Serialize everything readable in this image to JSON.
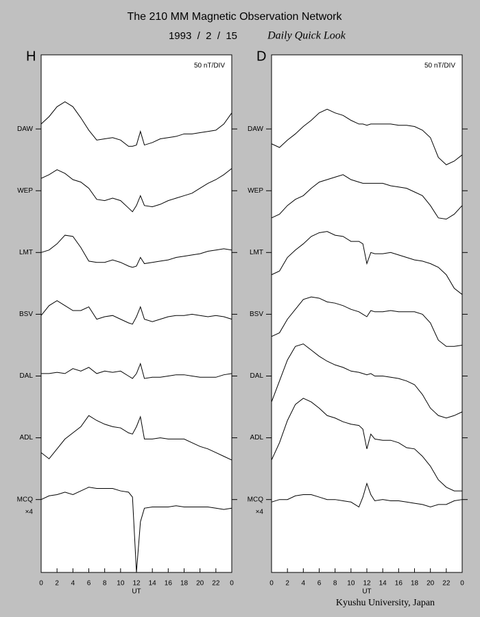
{
  "header": {
    "title": "The 210 MM Magnetic Observation Network",
    "date": "1993  /  2  /  15",
    "subtitle": "Daily Quick Look"
  },
  "footer": "Kyushu University, Japan",
  "chart_data": [
    {
      "type": "line",
      "panel_label": "H",
      "annotation": "50 nT/DIV",
      "xlabel": "UT",
      "scale_note": "×4",
      "x": [
        0,
        1,
        2,
        3,
        4,
        5,
        6,
        7,
        8,
        9,
        10,
        11,
        11.5,
        12,
        12.5,
        13,
        14,
        15,
        16,
        17,
        18,
        19,
        20,
        21,
        22,
        23,
        24
      ],
      "xlim": [
        0,
        24
      ],
      "xticks": [
        0,
        2,
        4,
        6,
        8,
        10,
        12,
        14,
        16,
        18,
        20,
        22,
        {
          "value": 24,
          "label": "0"
        }
      ],
      "ylim": [
        -359,
        60
      ],
      "yticks": [
        {
          "value": 0,
          "label": "DAW"
        },
        {
          "value": -50,
          "label": "WEP"
        },
        {
          "value": -100,
          "label": "LMT"
        },
        {
          "value": -150,
          "label": "BSV"
        },
        {
          "value": -200,
          "label": "DAL"
        },
        {
          "value": -250,
          "label": "ADL"
        },
        {
          "value": -300,
          "label": "MCQ"
        }
      ],
      "series": [
        {
          "name": "DAW",
          "color": "#000000",
          "values": [
            4,
            10,
            18,
            22,
            18,
            9,
            -1,
            -9,
            -8,
            -7,
            -9,
            -14,
            -14,
            -13,
            -2,
            -13,
            -11,
            -8,
            -7,
            -6,
            -4,
            -4,
            -3,
            -2,
            -1,
            4,
            13
          ]
        },
        {
          "name": "WEP",
          "color": "#000000",
          "values": [
            -40,
            -37,
            -33,
            -36,
            -41,
            -43,
            -48,
            -57,
            -58,
            -56,
            -58,
            -64,
            -67,
            -62,
            -54,
            -62,
            -63,
            -61,
            -58,
            -56,
            -54,
            -52,
            -48,
            -44,
            -41,
            -37,
            -32
          ]
        },
        {
          "name": "LMT",
          "color": "#000000",
          "values": [
            -100,
            -98,
            -93,
            -86,
            -87,
            -96,
            -107,
            -108,
            -108,
            -106,
            -108,
            -111,
            -112,
            -111,
            -104,
            -109,
            -108,
            -107,
            -106,
            -104,
            -103,
            -102,
            -101,
            -99,
            -98,
            -97,
            -98
          ]
        },
        {
          "name": "BSV",
          "color": "#000000",
          "values": [
            -151,
            -143,
            -139,
            -143,
            -147,
            -147,
            -144,
            -154,
            -152,
            -151,
            -154,
            -157,
            -158,
            -152,
            -144,
            -154,
            -156,
            -154,
            -152,
            -151,
            -151,
            -150,
            -151,
            -152,
            -151,
            -152,
            -154
          ]
        },
        {
          "name": "DAL",
          "color": "#000000",
          "values": [
            -198,
            -198,
            -197,
            -198,
            -194,
            -196,
            -193,
            -198,
            -196,
            -197,
            -196,
            -200,
            -202,
            -198,
            -190,
            -202,
            -201,
            -201,
            -200,
            -199,
            -199,
            -200,
            -201,
            -201,
            -201,
            -199,
            -198
          ]
        },
        {
          "name": "ADL",
          "color": "#000000",
          "values": [
            -262,
            -267,
            -259,
            -251,
            -246,
            -241,
            -232,
            -236,
            -239,
            -241,
            -242,
            -246,
            -247,
            -241,
            -233,
            -251,
            -251,
            -250,
            -251,
            -251,
            -251,
            -254,
            -257,
            -259,
            -262,
            -265,
            -268
          ]
        },
        {
          "name": "MCQ",
          "color": "#000000",
          "values": [
            -300,
            -297,
            -296,
            -294,
            -296,
            -293,
            -290,
            -291,
            -291,
            -291,
            -293,
            -294,
            -298,
            -359,
            -318,
            -307,
            -306,
            -306,
            -306,
            -305,
            -306,
            -306,
            -306,
            -306,
            -307,
            -308,
            -307
          ]
        }
      ]
    },
    {
      "type": "line",
      "panel_label": "D",
      "annotation": "50 nT/DIV",
      "xlabel": "UT",
      "scale_note": "×4",
      "x": [
        0,
        1,
        2,
        3,
        4,
        5,
        6,
        7,
        8,
        9,
        10,
        11,
        11.5,
        12,
        12.5,
        13,
        14,
        15,
        16,
        17,
        18,
        19,
        20,
        21,
        22,
        23,
        24
      ],
      "xlim": [
        0,
        24
      ],
      "xticks": [
        0,
        2,
        4,
        6,
        8,
        10,
        12,
        14,
        16,
        18,
        20,
        22,
        {
          "value": 24,
          "label": "0"
        }
      ],
      "ylim": [
        -359,
        60
      ],
      "yticks": [
        {
          "value": 0,
          "label": "DAW"
        },
        {
          "value": -50,
          "label": "WEP"
        },
        {
          "value": -100,
          "label": "LMT"
        },
        {
          "value": -150,
          "label": "BSV"
        },
        {
          "value": -200,
          "label": "DAL"
        },
        {
          "value": -250,
          "label": "ADL"
        },
        {
          "value": -300,
          "label": "MCQ"
        }
      ],
      "series": [
        {
          "name": "DAW",
          "color": "#000000",
          "values": [
            -12,
            -15,
            -9,
            -4,
            2,
            7,
            13,
            16,
            13,
            11,
            7,
            4,
            4,
            3,
            4,
            4,
            4,
            4,
            3,
            3,
            2,
            -1,
            -7,
            -23,
            -29,
            -26,
            -21
          ]
        },
        {
          "name": "WEP",
          "color": "#000000",
          "values": [
            -72,
            -69,
            -62,
            -57,
            -54,
            -48,
            -43,
            -41,
            -39,
            -37,
            -41,
            -43,
            -44,
            -44,
            -44,
            -44,
            -44,
            -46,
            -47,
            -48,
            -51,
            -54,
            -62,
            -72,
            -73,
            -69,
            -62
          ]
        },
        {
          "name": "LMT",
          "color": "#000000",
          "values": [
            -118,
            -115,
            -104,
            -98,
            -93,
            -87,
            -84,
            -83,
            -86,
            -87,
            -91,
            -91,
            -93,
            -109,
            -100,
            -101,
            -101,
            -100,
            -102,
            -104,
            -106,
            -107,
            -109,
            -112,
            -118,
            -129,
            -134
          ]
        },
        {
          "name": "BSV",
          "color": "#000000",
          "values": [
            -168,
            -165,
            -154,
            -146,
            -138,
            -136,
            -137,
            -140,
            -141,
            -143,
            -146,
            -148,
            -150,
            -152,
            -147,
            -148,
            -148,
            -147,
            -148,
            -148,
            -148,
            -150,
            -157,
            -171,
            -176,
            -176,
            -175
          ]
        },
        {
          "name": "DAL",
          "color": "#000000",
          "values": [
            -221,
            -204,
            -187,
            -176,
            -174,
            -179,
            -184,
            -188,
            -191,
            -193,
            -196,
            -197,
            -198,
            -199,
            -198,
            -200,
            -200,
            -201,
            -202,
            -204,
            -207,
            -215,
            -226,
            -232,
            -234,
            -232,
            -229
          ]
        },
        {
          "name": "ADL",
          "color": "#000000",
          "values": [
            -268,
            -254,
            -236,
            -223,
            -218,
            -221,
            -226,
            -232,
            -234,
            -237,
            -239,
            -240,
            -243,
            -259,
            -247,
            -251,
            -252,
            -252,
            -254,
            -258,
            -259,
            -265,
            -273,
            -284,
            -290,
            -293,
            -293
          ]
        },
        {
          "name": "MCQ",
          "color": "#000000",
          "values": [
            -302,
            -300,
            -300,
            -297,
            -296,
            -296,
            -298,
            -300,
            -300,
            -301,
            -302,
            -306,
            -298,
            -287,
            -296,
            -301,
            -300,
            -301,
            -301,
            -302,
            -303,
            -304,
            -306,
            -304,
            -304,
            -301,
            -300
          ]
        }
      ]
    }
  ]
}
